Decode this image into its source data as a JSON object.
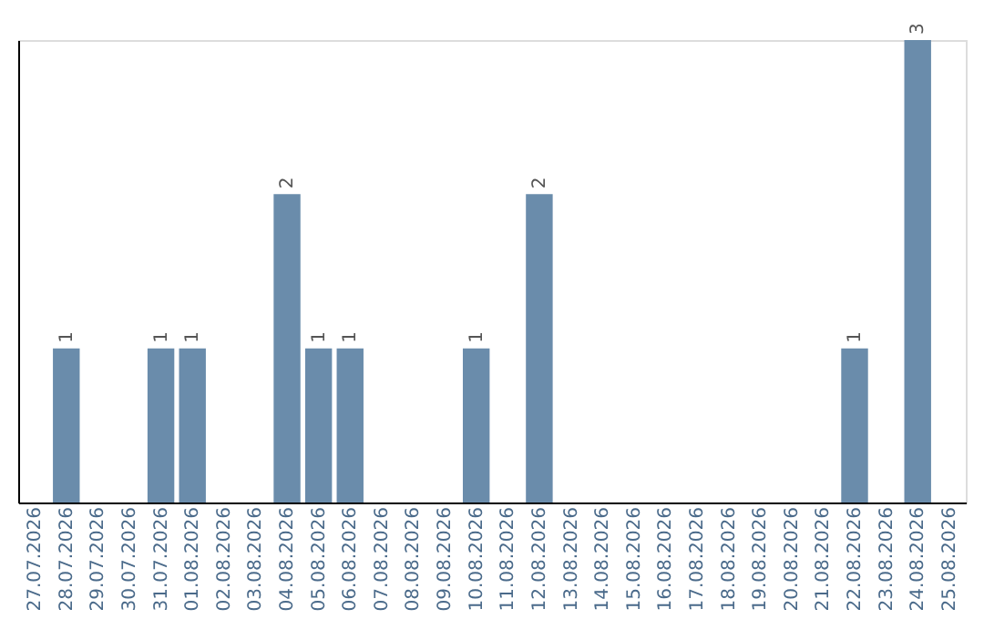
{
  "chart_data": {
    "type": "bar",
    "categories": [
      "27.07.2026",
      "28.07.2026",
      "29.07.2026",
      "30.07.2026",
      "31.07.2026",
      "01.08.2026",
      "02.08.2026",
      "03.08.2026",
      "04.08.2026",
      "05.08.2026",
      "06.08.2026",
      "07.08.2026",
      "08.08.2026",
      "09.08.2026",
      "10.08.2026",
      "11.08.2026",
      "12.08.2026",
      "13.08.2026",
      "14.08.2026",
      "15.08.2026",
      "16.08.2026",
      "17.08.2026",
      "18.08.2026",
      "19.08.2026",
      "20.08.2026",
      "21.08.2026",
      "22.08.2026",
      "23.08.2026",
      "24.08.2026",
      "25.08.2026"
    ],
    "values": [
      null,
      1,
      null,
      null,
      1,
      1,
      null,
      null,
      2,
      1,
      1,
      null,
      null,
      null,
      1,
      null,
      2,
      null,
      null,
      null,
      null,
      null,
      null,
      null,
      null,
      null,
      1,
      null,
      3,
      null
    ],
    "color": "#6a8cab",
    "data_labels": true,
    "tick_labels": "x",
    "grid": false
  }
}
